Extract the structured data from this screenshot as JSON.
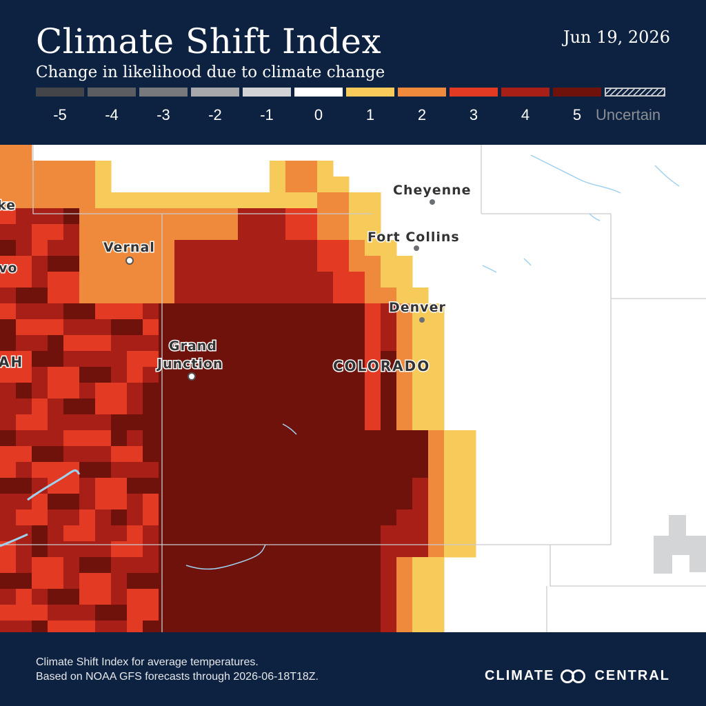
{
  "header": {
    "title": "Climate Shift Index",
    "subtitle": "Change in likelihood due to climate change",
    "date": "Jun 19, 2026"
  },
  "legend": [
    {
      "label": "-5",
      "color": "#434548"
    },
    {
      "label": "-4",
      "color": "#5b5d60"
    },
    {
      "label": "-3",
      "color": "#77797c"
    },
    {
      "label": "-2",
      "color": "#a6a8ab"
    },
    {
      "label": "-1",
      "color": "#d2d3d5"
    },
    {
      "label": "0",
      "color": "#ffffff"
    },
    {
      "label": "1",
      "color": "#f6cb5a"
    },
    {
      "label": "2",
      "color": "#ef8a3c"
    },
    {
      "label": "3",
      "color": "#e33a23"
    },
    {
      "label": "4",
      "color": "#a71f17"
    },
    {
      "label": "5",
      "color": "#6e120b"
    },
    {
      "label": "Uncertain",
      "color": "hatched"
    }
  ],
  "map": {
    "cities": [
      {
        "name": "Cheyenne",
        "icon": "city-dot-icon"
      },
      {
        "name": "Fort Collins",
        "icon": "city-dot-icon"
      },
      {
        "name": "Denver",
        "icon": "city-dot-icon"
      },
      {
        "name": "Vernal",
        "icon": "city-circle-icon"
      },
      {
        "name": "Grand",
        "icon": "city-circle-icon"
      },
      {
        "name": "Junction",
        "icon": "none"
      },
      {
        "name": "ke",
        "icon": "none"
      },
      {
        "name": "vo",
        "icon": "none"
      }
    ],
    "states": [
      "COLORADO",
      "AH"
    ]
  },
  "footer": {
    "line1": "Climate Shift Index for average temperatures.",
    "line2": "Based on NOAA GFS forecasts through 2026-06-18T18Z.",
    "brand_left": "CLIMATE",
    "brand_right": "CENTRAL",
    "brand_icon": "climate-central-logo-icon"
  }
}
